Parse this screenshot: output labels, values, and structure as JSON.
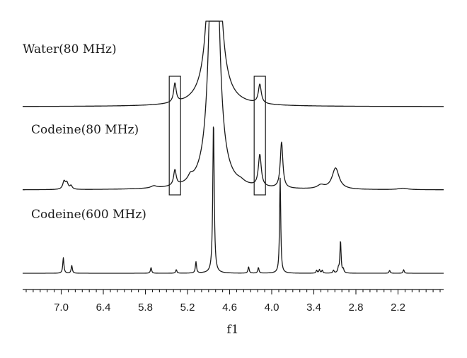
{
  "chart_data": {
    "type": "line",
    "title": "",
    "xlabel": "f1",
    "ylabel": "",
    "x_reversed": true,
    "xlim": [
      7.55,
      1.55
    ],
    "x_ticks": [
      7.0,
      6.4,
      5.8,
      5.2,
      4.6,
      4.0,
      3.4,
      2.8,
      2.2
    ],
    "x_tick_labels": [
      "7.0",
      "6.4",
      "5.8",
      "5.2",
      "4.6",
      "4.0",
      "3.4",
      "2.8",
      "2.2"
    ],
    "minor_tick_step": 0.1,
    "grid": false,
    "legend": "none",
    "stroke_color": "#1a1a1a",
    "highlight_ppm": [
      5.38,
      4.17
    ],
    "series": [
      {
        "name": "Water(80 MHz)",
        "peaks": [
          {
            "ppm": 5.38,
            "height": 0.27,
            "width": 0.022
          },
          {
            "ppm": 4.82,
            "height": 6.0,
            "width": 0.06
          },
          {
            "ppm": 4.17,
            "height": 0.27,
            "width": 0.025
          }
        ]
      },
      {
        "name": "Codeine(80 MHz)",
        "peaks": [
          {
            "ppm": 6.96,
            "height": 0.11,
            "width": 0.022
          },
          {
            "ppm": 6.92,
            "height": 0.09,
            "width": 0.022
          },
          {
            "ppm": 6.86,
            "height": 0.05,
            "width": 0.02
          },
          {
            "ppm": 5.68,
            "height": 0.03,
            "width": 0.05
          },
          {
            "ppm": 5.38,
            "height": 0.22,
            "width": 0.022
          },
          {
            "ppm": 5.16,
            "height": 0.07,
            "width": 0.04
          },
          {
            "ppm": 4.82,
            "height": 6.0,
            "width": 0.06
          },
          {
            "ppm": 4.44,
            "height": 0.03,
            "width": 0.06
          },
          {
            "ppm": 4.17,
            "height": 0.45,
            "width": 0.025
          },
          {
            "ppm": 3.86,
            "height": 0.65,
            "width": 0.022
          },
          {
            "ppm": 3.3,
            "height": 0.05,
            "width": 0.06
          },
          {
            "ppm": 3.09,
            "height": 0.3,
            "width": 0.06
          },
          {
            "ppm": 2.13,
            "height": 0.02,
            "width": 0.08
          }
        ]
      },
      {
        "name": "Codeine(600 MHz)",
        "peaks": [
          {
            "ppm": 6.97,
            "height": 0.22,
            "width": 0.01
          },
          {
            "ppm": 6.85,
            "height": 0.11,
            "width": 0.01
          },
          {
            "ppm": 5.72,
            "height": 0.08,
            "width": 0.01
          },
          {
            "ppm": 5.36,
            "height": 0.05,
            "width": 0.01
          },
          {
            "ppm": 5.08,
            "height": 0.16,
            "width": 0.01
          },
          {
            "ppm": 4.83,
            "height": 2.15,
            "width": 0.012
          },
          {
            "ppm": 4.33,
            "height": 0.09,
            "width": 0.01
          },
          {
            "ppm": 4.19,
            "height": 0.08,
            "width": 0.01
          },
          {
            "ppm": 3.88,
            "height": 1.35,
            "width": 0.01
          },
          {
            "ppm": 3.36,
            "height": 0.04,
            "width": 0.01
          },
          {
            "ppm": 3.32,
            "height": 0.05,
            "width": 0.01
          },
          {
            "ppm": 3.28,
            "height": 0.04,
            "width": 0.01
          },
          {
            "ppm": 3.12,
            "height": 0.04,
            "width": 0.01
          },
          {
            "ppm": 3.05,
            "height": 0.06,
            "width": 0.01
          },
          {
            "ppm": 3.02,
            "height": 0.46,
            "width": 0.01
          },
          {
            "ppm": 2.98,
            "height": 0.05,
            "width": 0.01
          },
          {
            "ppm": 2.32,
            "height": 0.04,
            "width": 0.01
          },
          {
            "ppm": 2.12,
            "height": 0.05,
            "width": 0.01
          }
        ]
      }
    ]
  }
}
